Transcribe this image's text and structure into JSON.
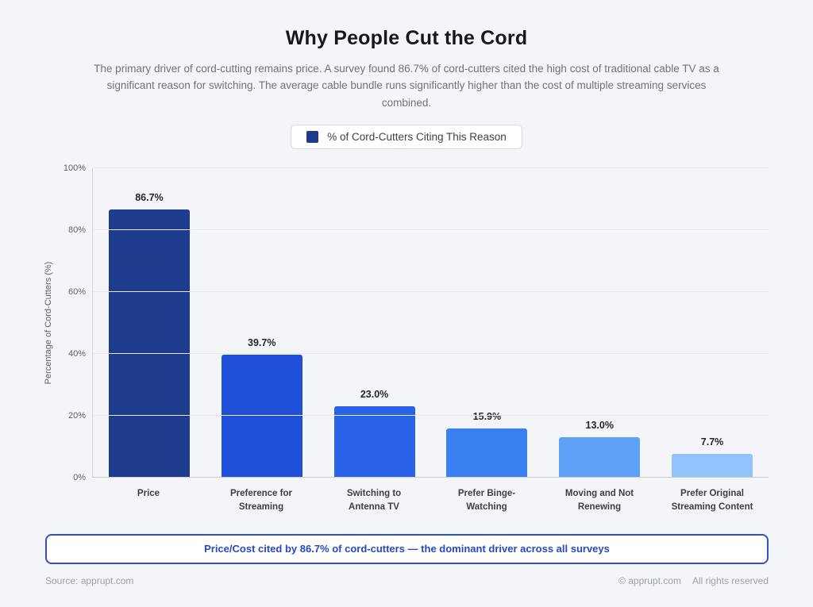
{
  "page": {
    "title": "Why People Cut the Cord",
    "subtitle": "The primary driver of cord-cutting remains price. A survey found 86.7% of cord-cutters cited the high cost of traditional cable TV as a significant reason for switching. The average cable bundle runs significantly higher than the cost of multiple streaming services combined.",
    "background_color": "#f4f5f9"
  },
  "legend": {
    "label": "% of Cord-Cutters Citing This Reason",
    "swatch_color": "#1e3a8a"
  },
  "chart_data": {
    "type": "bar",
    "title": "Why People Cut the Cord",
    "categories": [
      "Price",
      "Preference for Streaming",
      "Switching to Antenna TV",
      "Prefer Binge-Watching",
      "Moving and Not Renewing",
      "Prefer Original Streaming Content"
    ],
    "values": [
      86.7,
      39.7,
      23.0,
      15.9,
      13.0,
      7.7
    ],
    "value_labels": [
      "86.7%",
      "39.7%",
      "23.0%",
      "15.9%",
      "13.0%",
      "7.7%"
    ],
    "bar_colors": [
      "#1f3b8d",
      "#2150d8",
      "#2a63e8",
      "#3a80f0",
      "#5ea1f7",
      "#92c2fb"
    ],
    "series_name": "% of Cord-Cutters Citing This Reason",
    "xlabel": "",
    "ylabel": "Percentage of Cord-Cutters (%)",
    "ylim": [
      0,
      100
    ],
    "yticks": [
      0,
      20,
      40,
      60,
      80,
      100
    ],
    "ytick_labels": [
      "0%",
      "20%",
      "40%",
      "60%",
      "80%",
      "100%"
    ],
    "grid": true,
    "legend_position": "top"
  },
  "callout": {
    "text": "Price/Cost cited by 86.7% of cord-cutters — the dominant driver across all surveys",
    "border_color": "#2e52cb",
    "text_color": "#2747c5"
  },
  "footer": {
    "source": "Source: apprupt.com",
    "copyright": "© apprupt.com",
    "rights": "All rights reserved"
  }
}
